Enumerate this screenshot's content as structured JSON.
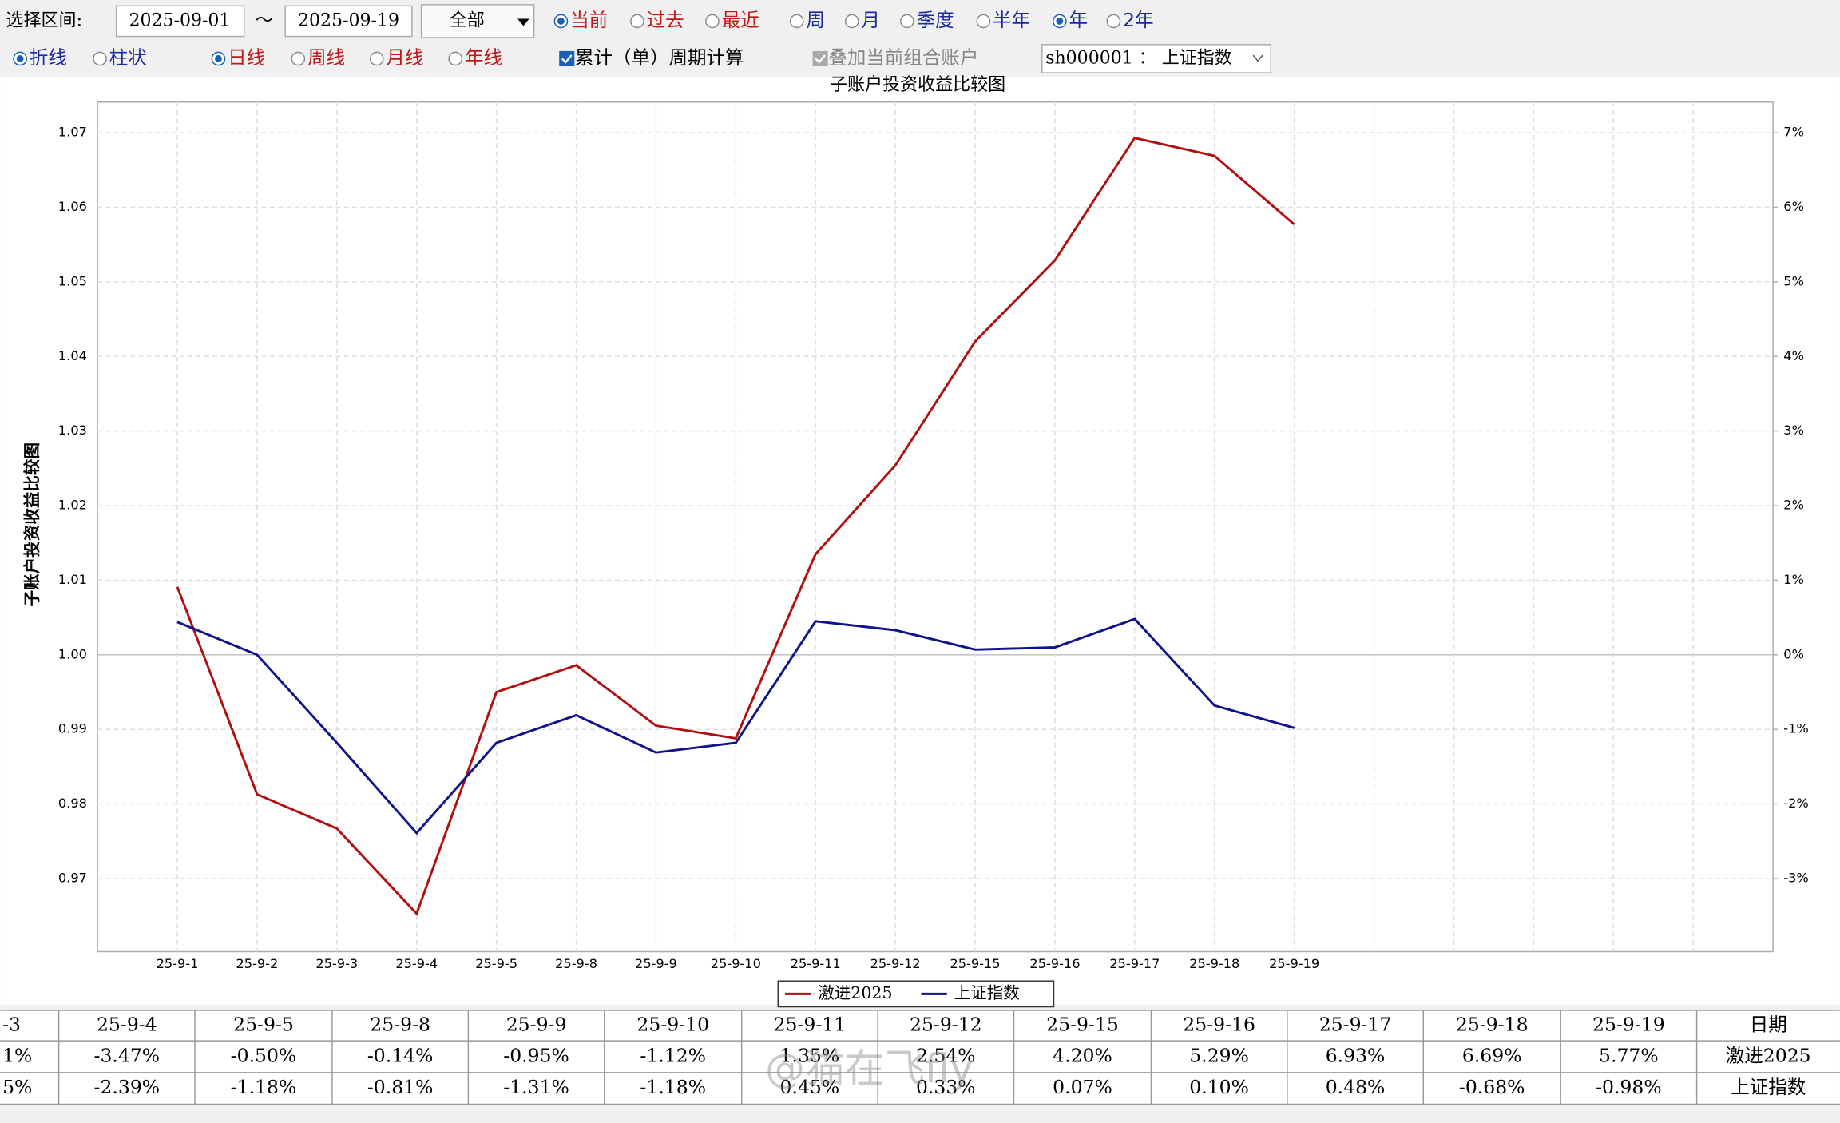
{
  "toolbar": {
    "range_label": "选择区间:",
    "start_date": "2025-09-01",
    "tilde": "～",
    "end_date": "2025-09-19",
    "scope": "全部",
    "period_options": [
      {
        "label": "当前",
        "selected": true
      },
      {
        "label": "过去",
        "selected": false
      },
      {
        "label": "最近",
        "selected": false
      },
      {
        "label": "周",
        "selected": false
      },
      {
        "label": "月",
        "selected": false
      },
      {
        "label": "季度",
        "selected": false
      },
      {
        "label": "半年",
        "selected": false
      },
      {
        "label": "年",
        "selected": true
      },
      {
        "label": "2年",
        "selected": false
      }
    ],
    "style_options": [
      {
        "label": "折线",
        "selected": true
      },
      {
        "label": "柱状",
        "selected": false
      },
      {
        "label": "日线",
        "selected": true
      },
      {
        "label": "周线",
        "selected": false
      },
      {
        "label": "月线",
        "selected": false
      },
      {
        "label": "年线",
        "selected": false
      }
    ],
    "checkboxes": [
      {
        "label": "累计（单）周期计算",
        "checked": true,
        "disabled": false
      },
      {
        "label": "叠加当前组合账户",
        "checked": true,
        "disabled": true
      }
    ],
    "index_select": "sh000001 ： 上证指数"
  },
  "chart_data": {
    "type": "line",
    "title": "子账户投资收益比较图",
    "y_label": "子账户投资收益比较图",
    "categories": [
      "25-9-1",
      "25-9-2",
      "25-9-3",
      "25-9-4",
      "25-9-5",
      "25-9-8",
      "25-9-9",
      "25-9-10",
      "25-9-11",
      "25-9-12",
      "25-9-15",
      "25-9-16",
      "25-9-17",
      "25-9-18",
      "25-9-19",
      null,
      null,
      null,
      null,
      null
    ],
    "series": [
      {
        "name": "激进2025",
        "color": "#b01010",
        "values": [
          1.0091,
          0.9813,
          0.9767,
          0.9653,
          0.995,
          0.9986,
          0.9905,
          0.9888,
          1.0135,
          1.0254,
          1.042,
          1.0529,
          1.0693,
          1.0669,
          1.0577,
          null,
          null,
          null,
          null,
          null
        ]
      },
      {
        "name": "上证指数",
        "color": "#10148c",
        "values": [
          1.0044,
          1.0,
          0.9882,
          0.9761,
          0.9882,
          0.9919,
          0.9869,
          0.9882,
          1.0045,
          1.0033,
          1.0007,
          1.001,
          1.0048,
          0.9932,
          0.9902,
          null,
          null,
          null,
          null,
          null
        ]
      }
    ],
    "ylim": [
      0.9602,
      1.0741
    ],
    "yticks": [
      0.97,
      0.98,
      0.99,
      {
        "value": 1,
        "label": "1.00"
      },
      1.01,
      1.02,
      1.03,
      1.04,
      1.05,
      1.06,
      1.07
    ],
    "y2lim": [
      -3.98,
      7.41
    ],
    "y2ticks": [
      {
        "value": -3,
        "label": "-3%"
      },
      {
        "value": -2,
        "label": "-2%"
      },
      {
        "value": -1,
        "label": "-1%"
      },
      {
        "value": 0,
        "label": "0%"
      },
      {
        "value": 1,
        "label": "1%"
      },
      {
        "value": 2,
        "label": "2%"
      },
      {
        "value": 3,
        "label": "3%"
      },
      {
        "value": 4,
        "label": "4%"
      },
      {
        "value": 5,
        "label": "5%"
      },
      {
        "value": 6,
        "label": "6%"
      },
      {
        "value": 7,
        "label": "7%"
      }
    ],
    "grid": true,
    "legend": "bottom"
  },
  "table": {
    "rows": [
      [
        "-3",
        "25-9-4",
        "25-9-5",
        "25-9-8",
        "25-9-9",
        "25-9-10",
        "25-9-11",
        "25-9-12",
        "25-9-15",
        "25-9-16",
        "25-9-17",
        "25-9-18",
        "25-9-19",
        "日期"
      ],
      [
        "1%",
        "-3.47%",
        "-0.50%",
        "-0.14%",
        "-0.95%",
        "-1.12%",
        "1.35%",
        "2.54%",
        "4.20%",
        "5.29%",
        "6.93%",
        "6.69%",
        "5.77%",
        "激进2025"
      ],
      [
        "5%",
        "-2.39%",
        "-1.18%",
        "-0.81%",
        "-1.31%",
        "-1.18%",
        "0.45%",
        "0.33%",
        "0.07%",
        "0.10%",
        "0.48%",
        "-0.68%",
        "-0.98%",
        "上证指数"
      ]
    ]
  },
  "watermark": "@猫在飞fly"
}
